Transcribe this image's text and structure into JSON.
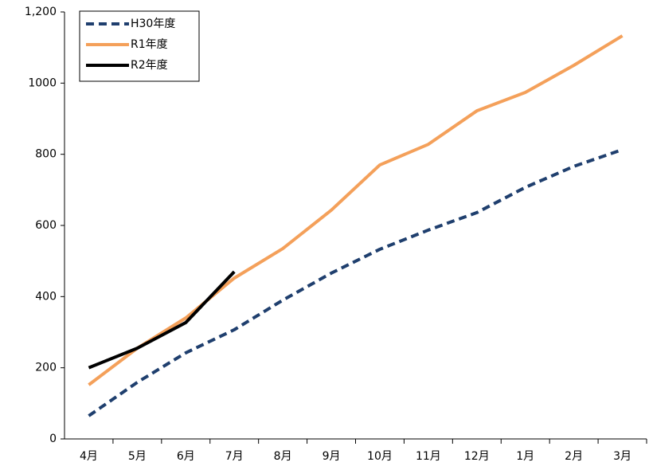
{
  "chart_data": {
    "type": "line",
    "categories": [
      "4月",
      "5月",
      "6月",
      "7月",
      "8月",
      "9月",
      "10月",
      "11月",
      "12月",
      "1月",
      "2月",
      "3月"
    ],
    "series": [
      {
        "name": "H30年度",
        "color": "#1f3f6e",
        "dashed": true,
        "values": [
          65,
          159,
          242,
          307,
          390,
          466,
          533,
          587,
          636,
          707,
          766,
          813
        ]
      },
      {
        "name": "R1年度",
        "color": "#f4a05a",
        "dashed": false,
        "values": [
          152,
          255,
          340,
          452,
          535,
          643,
          770,
          828,
          922,
          974,
          1050,
          1133
        ]
      },
      {
        "name": "R2年度",
        "color": "#000000",
        "dashed": false,
        "values": [
          200,
          255,
          327,
          470,
          null,
          null,
          null,
          null,
          null,
          null,
          null,
          null
        ]
      }
    ],
    "ylim": [
      0,
      1200
    ],
    "yticks": [
      0,
      200,
      400,
      600,
      800,
      1000,
      {
        "value": 1200,
        "label": "1,200"
      }
    ],
    "grid": false,
    "legend": "upper left"
  }
}
